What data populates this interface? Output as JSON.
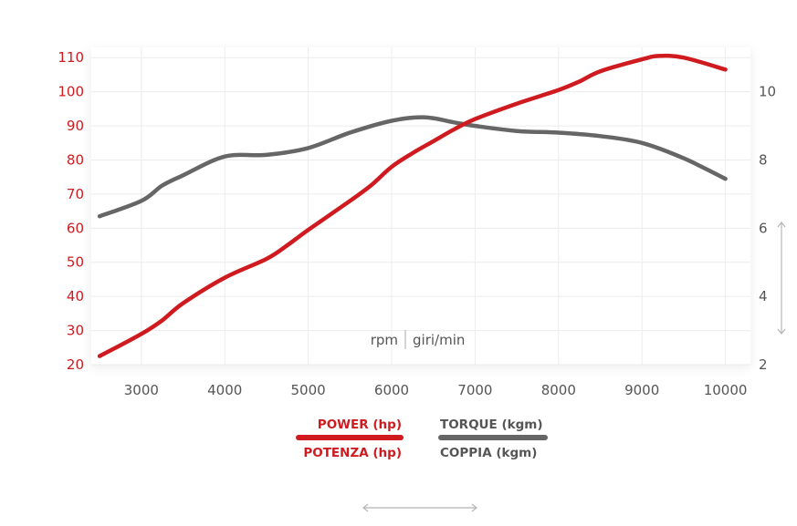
{
  "chart_data": {
    "type": "line",
    "x_unit_label_1": "rpm",
    "x_unit_label_2": "giri/min",
    "xlim": [
      2400,
      10300
    ],
    "x_ticks": [
      3000,
      4000,
      5000,
      6000,
      7000,
      8000,
      9000,
      10000
    ],
    "x_tick_labels": [
      "3000",
      "4000",
      "5000",
      "6000",
      "7000",
      "8000",
      "9000",
      "10000"
    ],
    "ylim_left": [
      20,
      113
    ],
    "y_ticks_left": [
      20,
      30,
      40,
      50,
      60,
      70,
      80,
      90,
      100,
      110
    ],
    "y_tick_labels_left": [
      "20",
      "30",
      "40",
      "50",
      "60",
      "70",
      "80",
      "90",
      "100",
      "110"
    ],
    "ylim_right": [
      2,
      11.3
    ],
    "y_ticks_right": [
      2,
      4,
      6,
      8,
      10
    ],
    "y_tick_labels_right": [
      "2",
      "4",
      "6",
      "8",
      "10"
    ],
    "grid": true,
    "legend_position": "bottom",
    "series": [
      {
        "key": "power",
        "name_line1": "POWER (hp)",
        "name_line2": "POTENZA (hp)",
        "axis": "left",
        "color": "#cf1a1f",
        "points": [
          [
            2500,
            22.5
          ],
          [
            3000,
            29
          ],
          [
            3250,
            33
          ],
          [
            3500,
            38
          ],
          [
            4000,
            45.5
          ],
          [
            4500,
            51
          ],
          [
            4750,
            55
          ],
          [
            5000,
            59.5
          ],
          [
            5500,
            68
          ],
          [
            5750,
            72.5
          ],
          [
            6000,
            78
          ],
          [
            6250,
            82
          ],
          [
            6500,
            85.5
          ],
          [
            6750,
            89
          ],
          [
            7000,
            92
          ],
          [
            7500,
            96.5
          ],
          [
            8000,
            100.5
          ],
          [
            8250,
            103
          ],
          [
            8500,
            106
          ],
          [
            9000,
            109.5
          ],
          [
            9200,
            110.5
          ],
          [
            9500,
            110
          ],
          [
            10000,
            106.5
          ]
        ]
      },
      {
        "key": "torque",
        "name_line1": "TORQUE (kgm)",
        "name_line2": "COPPIA (kgm)",
        "axis": "right",
        "color": "#666666",
        "points": [
          [
            2500,
            6.35
          ],
          [
            3000,
            6.8
          ],
          [
            3250,
            7.25
          ],
          [
            3500,
            7.55
          ],
          [
            4000,
            8.1
          ],
          [
            4500,
            8.15
          ],
          [
            5000,
            8.35
          ],
          [
            5500,
            8.8
          ],
          [
            6000,
            9.15
          ],
          [
            6400,
            9.25
          ],
          [
            6750,
            9.1
          ],
          [
            7000,
            9.0
          ],
          [
            7500,
            8.85
          ],
          [
            8000,
            8.8
          ],
          [
            8500,
            8.7
          ],
          [
            9000,
            8.5
          ],
          [
            9500,
            8.05
          ],
          [
            10000,
            7.45
          ]
        ]
      }
    ]
  }
}
